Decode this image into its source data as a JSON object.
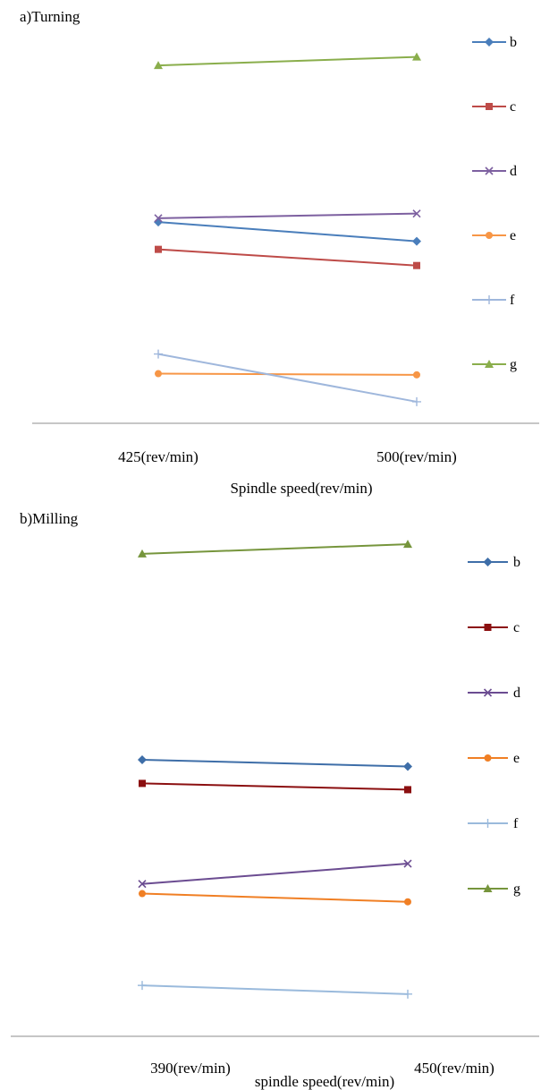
{
  "chart_data": [
    {
      "type": "line",
      "title": "a)Turning",
      "xlabel": "Spindle speed(rev/min)",
      "ylabel": "",
      "categories": [
        "425(rev/min)",
        "500(rev/min)"
      ],
      "ylim": [
        0,
        1
      ],
      "legend_position": "right",
      "series": [
        {
          "name": "b",
          "values": [
            0.516,
            0.466
          ],
          "color": "#4a7ebb",
          "marker": "diamond"
        },
        {
          "name": "c",
          "values": [
            0.445,
            0.403
          ],
          "color": "#be4b48",
          "marker": "square"
        },
        {
          "name": "d",
          "values": [
            0.526,
            0.538
          ],
          "color": "#7d60a0",
          "marker": "x"
        },
        {
          "name": "e",
          "values": [
            0.122,
            0.119
          ],
          "color": "#f79646",
          "marker": "circle"
        },
        {
          "name": "f",
          "values": [
            0.173,
            0.049
          ],
          "color": "#9fb7dc",
          "marker": "plus"
        },
        {
          "name": "g",
          "values": [
            0.923,
            0.945
          ],
          "color": "#8aae4c",
          "marker": "triangle"
        }
      ]
    },
    {
      "type": "line",
      "title": "b)Milling",
      "xlabel": "spindle speed(rev/min)",
      "ylabel": "",
      "categories": [
        "390(rev/min)",
        "450(rev/min)"
      ],
      "ylim": [
        0,
        1
      ],
      "legend_position": "right",
      "series": [
        {
          "name": "b",
          "values": [
            0.539,
            0.525
          ],
          "color": "#3e6ea8",
          "marker": "diamond"
        },
        {
          "name": "c",
          "values": [
            0.49,
            0.477
          ],
          "color": "#8b0f10",
          "marker": "square"
        },
        {
          "name": "d",
          "values": [
            0.282,
            0.324
          ],
          "color": "#6b4c91",
          "marker": "x"
        },
        {
          "name": "e",
          "values": [
            0.262,
            0.245
          ],
          "color": "#f07f24",
          "marker": "circle"
        },
        {
          "name": "f",
          "values": [
            0.072,
            0.054
          ],
          "color": "#9abadc",
          "marker": "plus"
        },
        {
          "name": "g",
          "values": [
            0.965,
            0.985
          ],
          "color": "#76953c",
          "marker": "triangle"
        }
      ]
    }
  ]
}
